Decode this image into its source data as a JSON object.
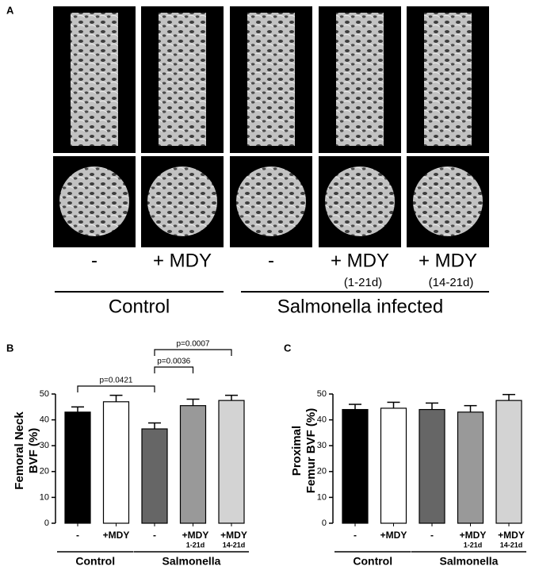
{
  "panel_a": {
    "panel_label": "A",
    "columns": [
      "-",
      "+ MDY",
      "-",
      "+ MDY",
      "+ MDY"
    ],
    "sublabels": [
      null,
      null,
      null,
      "(1-21d)",
      "(14-21d)"
    ],
    "groups": [
      {
        "label": "Control",
        "from": 0,
        "to": 1
      },
      {
        "label": "Salmonella infected",
        "from": 2,
        "to": 4
      }
    ]
  },
  "chart_data": [
    {
      "type": "bar",
      "panel_label": "B",
      "ylabel": [
        "Femoral Neck",
        "BVF  (%)"
      ],
      "categories": [
        "-",
        "+MDY",
        "-",
        "+MDY",
        "+MDY"
      ],
      "category_sublabels": [
        null,
        null,
        null,
        "1-21d",
        "14-21d"
      ],
      "values": [
        43,
        47,
        36.5,
        45.5,
        47.5
      ],
      "errors": [
        2,
        2.5,
        2.3,
        2.5,
        2
      ],
      "colors": [
        "#000000",
        "#ffffff",
        "#666666",
        "#999999",
        "#d3d3d3"
      ],
      "ylim": [
        0,
        50
      ],
      "yticks": [
        0,
        10,
        20,
        30,
        40,
        50
      ],
      "groups": [
        {
          "label": "Control",
          "from": 0,
          "to": 1
        },
        {
          "label": "Salmonella",
          "from": 2,
          "to": 4
        }
      ],
      "comparisons": [
        {
          "from": 0,
          "to": 2,
          "label": "p=0.0421"
        },
        {
          "from": 2,
          "to": 3,
          "label": "p=0.0036"
        },
        {
          "from": 2,
          "to": 4,
          "label": "p=0.0007"
        }
      ]
    },
    {
      "type": "bar",
      "panel_label": "C",
      "ylabel": [
        "Proximal",
        "Femur BVF (%)"
      ],
      "categories": [
        "-",
        "+MDY",
        "-",
        "+MDY",
        "+MDY"
      ],
      "category_sublabels": [
        null,
        null,
        null,
        "1-21d",
        "14-21d"
      ],
      "values": [
        44,
        44.5,
        44,
        43,
        47.5
      ],
      "errors": [
        2,
        2.3,
        2.5,
        2.5,
        2.3
      ],
      "colors": [
        "#000000",
        "#ffffff",
        "#666666",
        "#999999",
        "#d3d3d3"
      ],
      "ylim": [
        0,
        50
      ],
      "yticks": [
        0,
        10,
        20,
        30,
        40,
        50
      ],
      "groups": [
        {
          "label": "Control",
          "from": 0,
          "to": 1
        },
        {
          "label": "Salmonella",
          "from": 2,
          "to": 4
        }
      ]
    }
  ]
}
